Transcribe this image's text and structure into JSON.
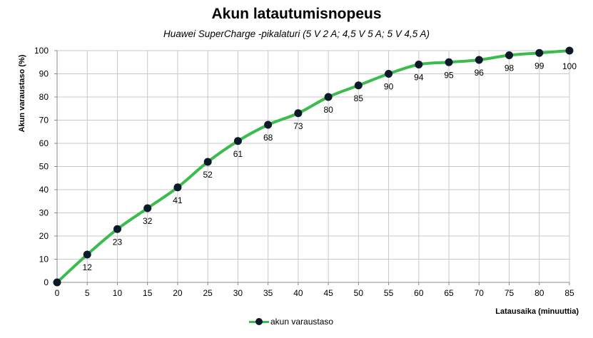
{
  "chart_data": {
    "type": "line",
    "title": "Akun latautumisnopeus",
    "subtitle": "Huawei SuperCharge -pikalaturi (5 V 2 A; 4,5 V 5 A; 5 V 4,5 A)",
    "xlabel": "Latausaika  (minuuttia)",
    "ylabel": "Akun varaustaso (%)",
    "x": [
      0,
      5,
      10,
      15,
      20,
      25,
      30,
      35,
      40,
      45,
      50,
      55,
      60,
      65,
      70,
      75,
      80,
      85
    ],
    "series": [
      {
        "name": "akun varaustaso",
        "values": [
          0,
          12,
          23,
          32,
          41,
          52,
          61,
          68,
          73,
          80,
          85,
          90,
          94,
          95,
          96,
          98,
          99,
          100
        ],
        "color": "#3cbc4e",
        "marker_color": "#0c1a2a"
      }
    ],
    "data_labels": [
      "",
      "12",
      "23",
      "32",
      "41",
      "52",
      "61",
      "68",
      "73",
      "80",
      "85",
      "90",
      "94",
      "95",
      "96",
      "98",
      "99",
      "100"
    ],
    "xticks": [
      "0",
      "5",
      "10",
      "15",
      "20",
      "25",
      "30",
      "35",
      "40",
      "45",
      "50",
      "55",
      "60",
      "65",
      "70",
      "75",
      "80",
      "85"
    ],
    "yticks": [
      "0",
      "10",
      "20",
      "30",
      "40",
      "50",
      "60",
      "70",
      "80",
      "90",
      "100"
    ],
    "xlim": [
      0,
      85
    ],
    "ylim": [
      0,
      100
    ],
    "grid": true,
    "legend": "bottom",
    "grid_color": "#c8c8c8"
  }
}
